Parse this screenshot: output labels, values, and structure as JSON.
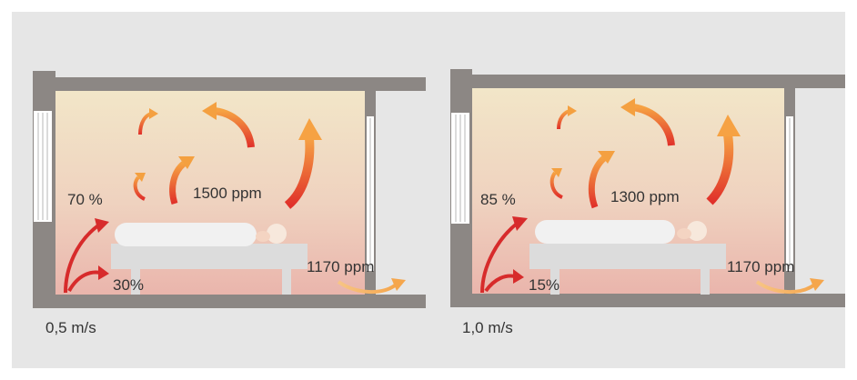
{
  "panels": [
    {
      "speed": "0,5 m/s",
      "upper_pct": "70 %",
      "lower_pct": "30%",
      "center_ppm": "1500 ppm",
      "exit_ppm": "1170 ppm"
    },
    {
      "speed": "1,0 m/s",
      "upper_pct": "85 %",
      "lower_pct": "15%",
      "center_ppm": "1300 ppm",
      "exit_ppm": "1170 ppm"
    }
  ],
  "colors": {
    "background": "#e6e6e6",
    "wall": "#8c8784",
    "room_top": "#f2e4c6",
    "room_bottom": "#eab9ae",
    "inflow_arrow": "#d72b2b",
    "circulation_warm": "#f4a34a",
    "circulation_hot": "#e23a2a",
    "outflow_arrow": "#f6b86a"
  },
  "icons": [
    "inflow-arrow-icon",
    "circulation-arrow-icon",
    "outflow-arrow-icon",
    "window-icon",
    "person-icon"
  ]
}
